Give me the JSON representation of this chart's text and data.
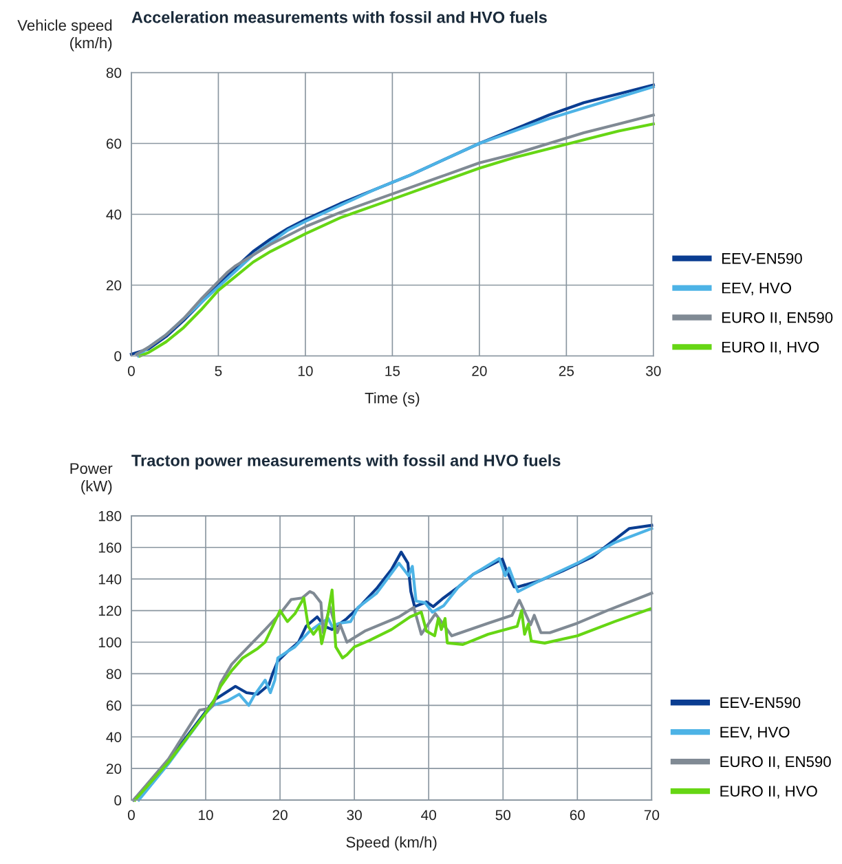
{
  "chart_data": [
    {
      "type": "line",
      "title": "Acceleration measurements with fossil and HVO fuels",
      "xlabel": "Time (s)",
      "ylabel": "Vehicle speed\n(km/h)",
      "xlim": [
        0,
        30
      ],
      "xticks": [
        0,
        5,
        10,
        15,
        20,
        25,
        30
      ],
      "ylim": [
        0,
        80
      ],
      "yticks": [
        0,
        20,
        40,
        60,
        80
      ],
      "grid": true,
      "legend": "bottom right",
      "line_style": "solid",
      "marker": "none",
      "series": [
        {
          "name": "EEV-EN590",
          "color": "#0a3d91",
          "x": [
            0,
            1,
            2,
            3,
            4,
            5,
            6,
            7,
            8,
            9,
            10,
            12,
            14,
            16,
            18,
            20,
            22,
            24,
            26,
            28,
            30
          ],
          "values": [
            0.5,
            2,
            5.5,
            10,
            15,
            20,
            25,
            29.5,
            33,
            36,
            38.5,
            43,
            47,
            51,
            55.5,
            60,
            64,
            68,
            71.5,
            74,
            76.5
          ]
        },
        {
          "name": "EEV, HVO",
          "color": "#4db3e6",
          "x": [
            0.4,
            1,
            2,
            3,
            4,
            5,
            6,
            7,
            8,
            9,
            10,
            12,
            14,
            16,
            18,
            20,
            22,
            24,
            26,
            28,
            30
          ],
          "values": [
            0,
            2.5,
            6,
            10.5,
            15,
            19.5,
            24,
            28.5,
            32,
            35.5,
            38,
            42.5,
            47,
            51,
            55.5,
            60,
            63.5,
            67,
            70,
            73,
            76
          ]
        },
        {
          "name": "EURO II, EN590",
          "color": "#808a94",
          "x": [
            0.3,
            1,
            2,
            3,
            4,
            5,
            5.5,
            6,
            7,
            8,
            10,
            12,
            14,
            16,
            18,
            20,
            22,
            24,
            26,
            28,
            30
          ],
          "values": [
            0.5,
            2.5,
            6,
            10.5,
            16,
            21,
            23.5,
            25.5,
            28.5,
            31.5,
            36.5,
            40.5,
            44,
            47.5,
            51,
            54.5,
            57,
            60,
            63,
            65.5,
            68
          ]
        },
        {
          "name": "EURO II, HVO",
          "color": "#66d614",
          "x": [
            0.5,
            1,
            2,
            3,
            4,
            5,
            6,
            7,
            8,
            10,
            12,
            14,
            16,
            18,
            20,
            22,
            24,
            26,
            28,
            30
          ],
          "values": [
            0,
            1,
            4,
            8,
            13,
            18.5,
            22.5,
            26.5,
            29.5,
            34.5,
            39,
            42.5,
            46,
            49.5,
            53,
            56,
            58.5,
            61,
            63.5,
            65.5
          ]
        }
      ]
    },
    {
      "type": "line",
      "title": "Tracton power measurements with fossil and HVO fuels",
      "xlabel": "Speed (km/h)",
      "ylabel": "Power\n(kW)",
      "xlim": [
        0,
        70
      ],
      "xticks": [
        0,
        10,
        20,
        30,
        40,
        50,
        60,
        70
      ],
      "ylim": [
        0,
        180
      ],
      "yticks": [
        0,
        20,
        40,
        60,
        80,
        100,
        120,
        140,
        160,
        180
      ],
      "grid": true,
      "legend": "bottom right",
      "line_style": "solid",
      "marker": "none",
      "series": [
        {
          "name": "EEV-EN590",
          "color": "#0a3d91",
          "x": [
            0.3,
            5,
            10,
            11.2,
            14,
            15.5,
            17,
            18.5,
            19,
            19.7,
            21,
            22.5,
            23.5,
            25,
            26,
            27,
            29,
            31,
            33,
            35,
            36.3,
            37.2,
            37.6,
            38.1,
            39.7,
            40.6,
            42,
            44,
            46,
            48,
            49.9,
            50.5,
            51.5,
            52,
            55,
            58,
            62,
            67,
            70
          ],
          "values": [
            0,
            25,
            56,
            63.5,
            72,
            68,
            67,
            73,
            80,
            88,
            94,
            100,
            110,
            116,
            110,
            108,
            115,
            124,
            134,
            146,
            157,
            150,
            132,
            122.5,
            125.5,
            122.5,
            128,
            135,
            143,
            148,
            152.6,
            145,
            135,
            135,
            139,
            145,
            154,
            172,
            174
          ]
        },
        {
          "name": "EEV, HVO",
          "color": "#4db3e6",
          "x": [
            1,
            5,
            10,
            11,
            13,
            14.5,
            15.8,
            16.5,
            18,
            18.7,
            19.3,
            19.7,
            21,
            22,
            24,
            25.5,
            26.5,
            27,
            28,
            29.5,
            30.5,
            33,
            36,
            37.3,
            37.8,
            38.3,
            39.5,
            40.5,
            42,
            44,
            46,
            49.5,
            50.3,
            50.8,
            52,
            55,
            60,
            65,
            70
          ],
          "values": [
            0,
            23,
            55,
            60,
            63,
            67,
            60,
            66,
            76,
            68,
            76,
            90,
            94,
            97,
            107,
            112,
            115,
            110,
            112,
            113,
            122,
            131,
            150,
            142,
            148,
            126,
            125,
            119,
            123,
            135,
            143,
            153,
            142,
            147,
            132,
            139,
            150,
            163,
            172
          ]
        },
        {
          "name": "EURO II, EN590",
          "color": "#808a94",
          "x": [
            0.3,
            5,
            9.2,
            10.5,
            11,
            12,
            13.5,
            14.5,
            18,
            20,
            21.5,
            23,
            24,
            24.5,
            25.5,
            25.8,
            26.7,
            27.7,
            28.1,
            29,
            31.4,
            36,
            38,
            39,
            40.9,
            43.1,
            48,
            51.2,
            52.2,
            53.7,
            54.2,
            55.1,
            56.3,
            60,
            64,
            70
          ],
          "values": [
            0,
            26,
            57,
            58,
            60,
            74,
            86,
            91,
            108,
            118,
            127,
            128,
            132,
            131,
            125,
            106,
            122.5,
            106,
            111,
            100,
            107,
            116,
            122,
            105,
            118,
            104,
            112,
            117,
            126.5,
            111,
            117,
            106,
            106,
            112,
            120,
            131
          ]
        },
        {
          "name": "EURO II, HVO",
          "color": "#66d614",
          "x": [
            0.5,
            5,
            10,
            11,
            12,
            13.5,
            15,
            17,
            18,
            19,
            20,
            21,
            22,
            23.2,
            23.8,
            24.5,
            25.3,
            25.6,
            26.2,
            27,
            27.5,
            28.4,
            29,
            30,
            32,
            35,
            37.5,
            39,
            39.7,
            40.8,
            41.3,
            41.7,
            42.2,
            42.5,
            44.6,
            48,
            51.9,
            52.5,
            52.9,
            53.4,
            53.8,
            55.6,
            60,
            65,
            69.8
          ],
          "values": [
            0,
            24,
            55,
            62,
            72,
            82,
            90,
            96,
            100,
            110,
            120,
            113,
            118,
            128,
            110,
            105,
            110,
            99,
            111,
            133,
            97,
            90,
            92,
            97,
            101,
            108,
            116,
            119,
            107,
            104,
            115,
            108,
            115,
            99.5,
            98.5,
            105,
            110,
            120,
            105,
            111.5,
            100.7,
            99.4,
            104,
            113,
            121
          ]
        }
      ]
    }
  ]
}
